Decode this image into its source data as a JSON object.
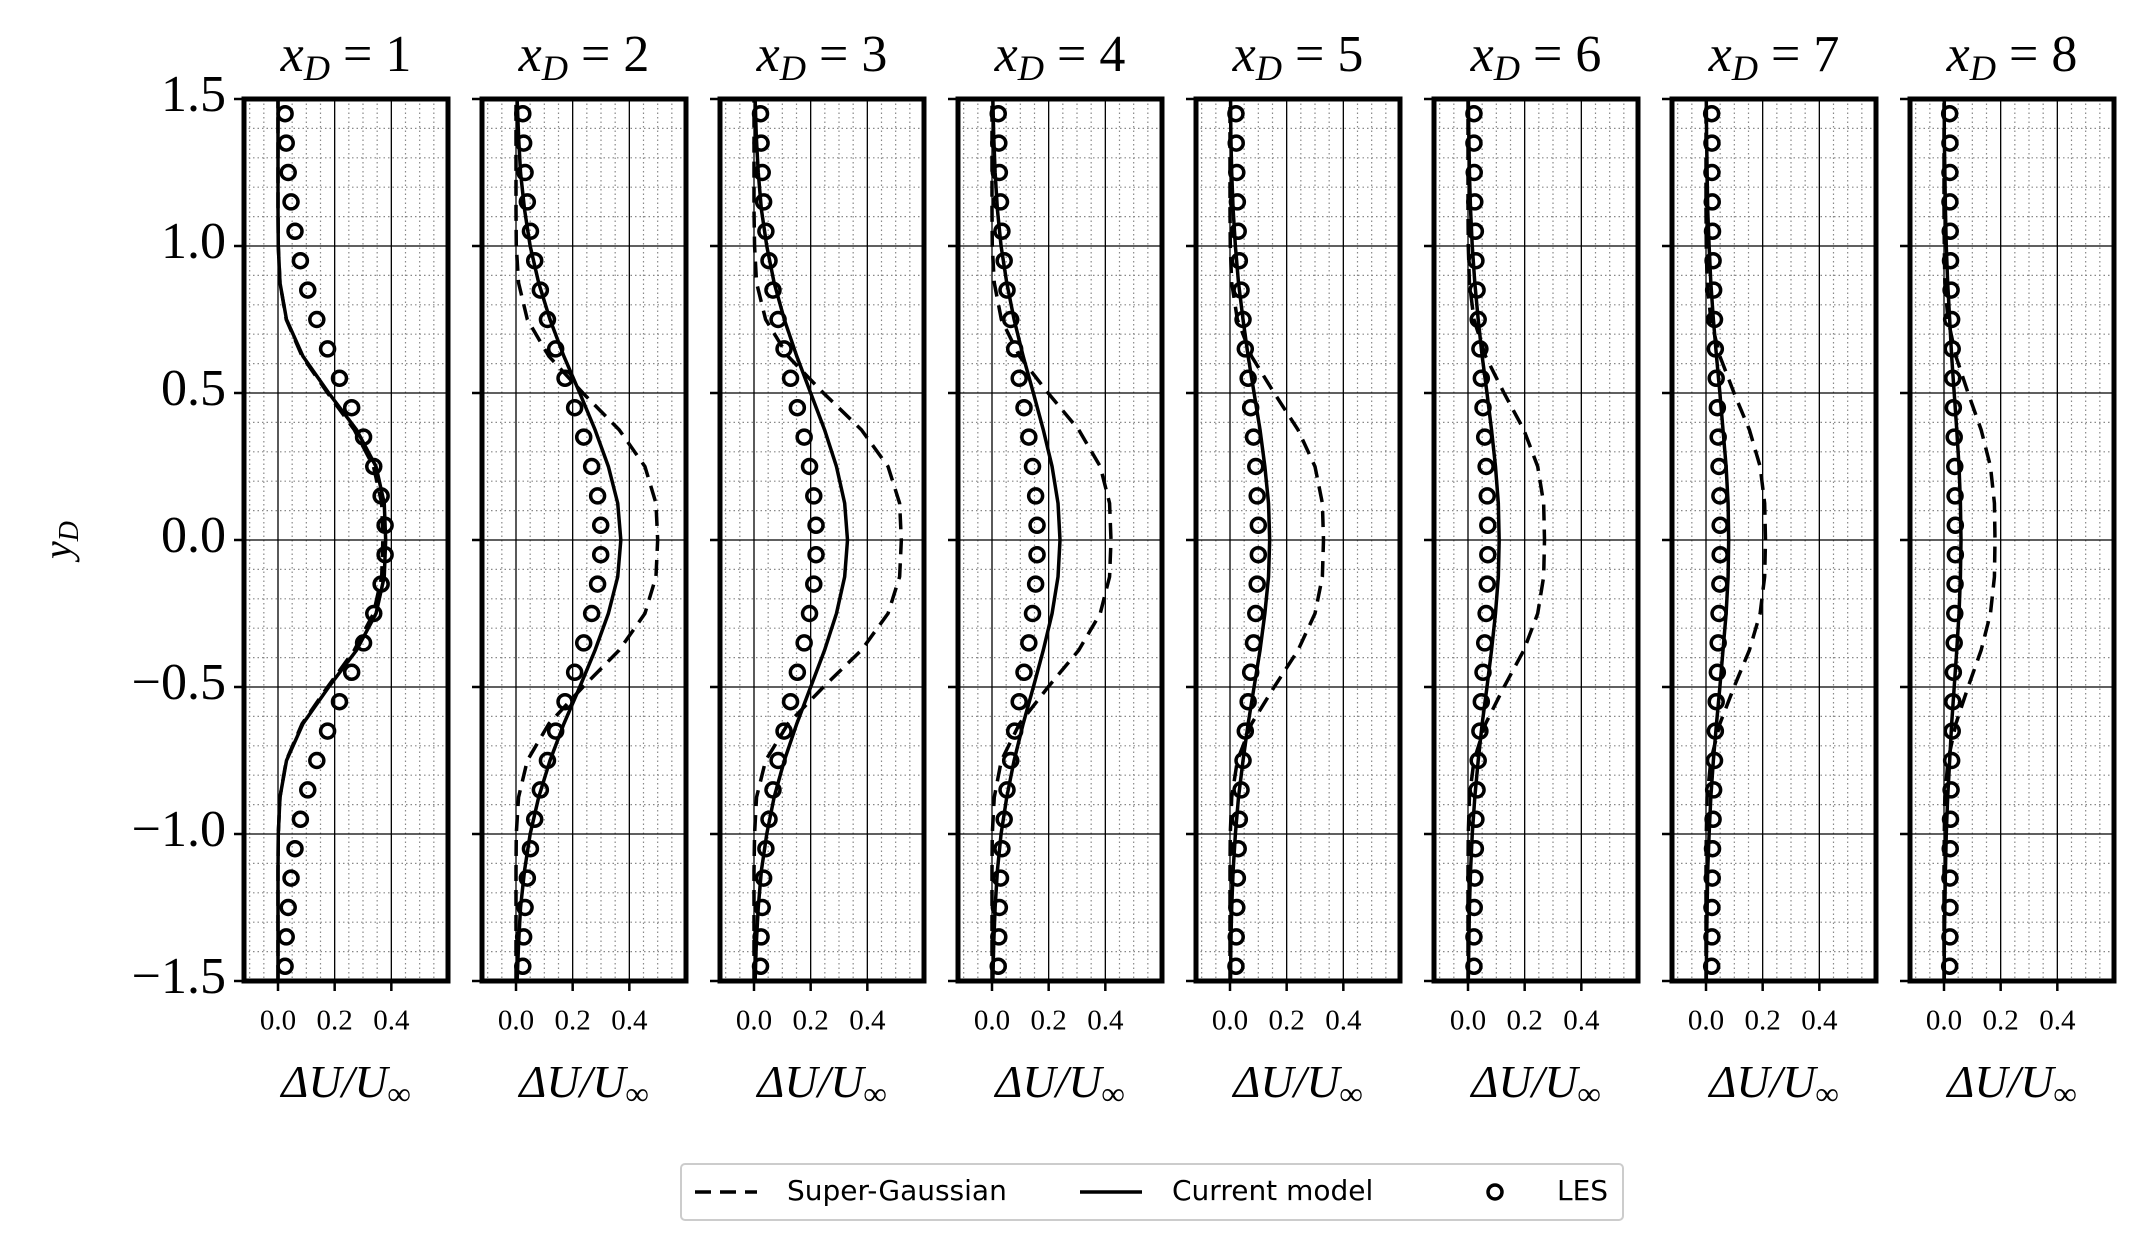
{
  "chart_data": {
    "type": "line",
    "xlabel": "ΔU/U∞",
    "ylabel": "yD",
    "xlim": [
      -0.12,
      0.6
    ],
    "ylim": [
      -1.5,
      1.5
    ],
    "xticks": [
      {
        "value": 0,
        "label": "0.0"
      },
      0.2,
      0.4
    ],
    "yticks": [
      {
        "value": -1.5,
        "label": "−1.5"
      },
      {
        "value": -1,
        "label": "−1.0"
      },
      {
        "value": -0.5,
        "label": "−0.5"
      },
      {
        "value": 0,
        "label": "0.0"
      },
      0.5,
      {
        "value": 1,
        "label": "1.0"
      },
      1.5
    ],
    "xminorticks": [
      -0.1,
      -0.05,
      0.05,
      0.1,
      0.15,
      0.25,
      0.3,
      0.35,
      0.45,
      0.5,
      0.55
    ],
    "yminorticks": [
      -1.4,
      -1.3,
      -1.2,
      -1.1,
      -0.9,
      -0.8,
      -0.7,
      -0.6,
      -0.4,
      -0.3,
      -0.2,
      -0.1,
      0.1,
      0.2,
      0.3,
      0.4,
      0.6,
      0.7,
      0.8,
      0.9,
      1.1,
      1.2,
      1.3,
      1.4
    ],
    "grid": true,
    "legend": "lower center",
    "series": [
      {
        "name": "Super-Gaussian",
        "color": "#000000",
        "style": "dashed",
        "y": [
          -1.5,
          -1.375,
          -1.25,
          -1.125,
          -1,
          -0.875,
          -0.75,
          -0.625,
          -0.5,
          -0.375,
          -0.25,
          -0.125,
          0,
          0.125,
          0.25,
          0.375,
          0.5,
          0.625,
          0.75,
          0.875,
          1,
          1.125,
          1.25,
          1.375,
          1.5
        ]
      },
      {
        "name": "Current model",
        "color": "#000000",
        "style": "solid",
        "y": [
          -1.5,
          -1.375,
          -1.25,
          -1.125,
          -1,
          -0.875,
          -0.75,
          -0.625,
          -0.5,
          -0.375,
          -0.25,
          -0.125,
          0,
          0.125,
          0.25,
          0.375,
          0.5,
          0.625,
          0.75,
          0.875,
          1,
          1.125,
          1.25,
          1.375,
          1.5
        ]
      },
      {
        "name": "LES",
        "color": "#000000",
        "style": "marker",
        "y": [
          -1.45,
          -1.35,
          -1.25,
          -1.15,
          -1.05,
          -0.95,
          -0.85,
          -0.75,
          -0.65,
          -0.55,
          -0.45,
          -0.35,
          -0.25,
          -0.15,
          -0.05,
          0.05,
          0.15,
          0.25,
          0.35,
          0.45,
          0.55,
          0.65,
          0.75,
          0.85,
          0.95,
          1.05,
          1.15,
          1.25,
          1.35,
          1.45
        ]
      }
    ],
    "panels": [
      {
        "title": "xD = 1",
        "values": [
          [
            0,
            0,
            0,
            0,
            0.001,
            0.007,
            0.029,
            0.085,
            0.175,
            0.269,
            0.337,
            0.366,
            0.37,
            0.366,
            0.337,
            0.269,
            0.175,
            0.085,
            0.029,
            0.007,
            0.001,
            0,
            0,
            0,
            0
          ],
          [
            0,
            0,
            0,
            0,
            0.001,
            0.007,
            0.03,
            0.088,
            0.179,
            0.277,
            0.346,
            0.375,
            0.38,
            0.375,
            0.346,
            0.277,
            0.179,
            0.088,
            0.03,
            0.007,
            0.001,
            0,
            0,
            0,
            0
          ],
          [
            0.025,
            0.029,
            0.036,
            0.046,
            0.06,
            0.079,
            0.105,
            0.137,
            0.175,
            0.217,
            0.26,
            0.302,
            0.338,
            0.364,
            0.378,
            0.378,
            0.364,
            0.338,
            0.302,
            0.26,
            0.217,
            0.175,
            0.137,
            0.105,
            0.079,
            0.06,
            0.046,
            0.036,
            0.029,
            0.025
          ]
        ]
      },
      {
        "title": "xD = 2",
        "values": [
          [
            0,
            0,
            0,
            0,
            0.001,
            0.009,
            0.04,
            0.116,
            0.236,
            0.364,
            0.455,
            0.494,
            0.5,
            0.494,
            0.455,
            0.364,
            0.236,
            0.116,
            0.04,
            0.009,
            0.001,
            0,
            0,
            0,
            0
          ],
          [
            0.004,
            0.009,
            0.016,
            0.03,
            0.05,
            0.08,
            0.12,
            0.169,
            0.225,
            0.279,
            0.326,
            0.359,
            0.37,
            0.359,
            0.326,
            0.279,
            0.225,
            0.169,
            0.12,
            0.08,
            0.05,
            0.03,
            0.016,
            0.009,
            0.004
          ],
          [
            0.024,
            0.027,
            0.032,
            0.04,
            0.051,
            0.066,
            0.086,
            0.111,
            0.14,
            0.173,
            0.207,
            0.239,
            0.267,
            0.288,
            0.299,
            0.299,
            0.288,
            0.267,
            0.239,
            0.207,
            0.173,
            0.14,
            0.111,
            0.086,
            0.066,
            0.051,
            0.04,
            0.032,
            0.027,
            0.024
          ]
        ]
      },
      {
        "title": "xD = 3",
        "values": [
          [
            0,
            0,
            0,
            0,
            0.002,
            0.009,
            0.041,
            0.12,
            0.245,
            0.379,
            0.473,
            0.514,
            0.52,
            0.514,
            0.473,
            0.379,
            0.245,
            0.12,
            0.041,
            0.009,
            0.002,
            0,
            0,
            0,
            0
          ],
          [
            0.004,
            0.008,
            0.015,
            0.026,
            0.045,
            0.071,
            0.107,
            0.151,
            0.2,
            0.249,
            0.291,
            0.32,
            0.33,
            0.32,
            0.291,
            0.249,
            0.2,
            0.151,
            0.107,
            0.071,
            0.045,
            0.026,
            0.015,
            0.008,
            0.004
          ],
          [
            0.023,
            0.025,
            0.029,
            0.034,
            0.042,
            0.053,
            0.067,
            0.085,
            0.106,
            0.129,
            0.153,
            0.177,
            0.196,
            0.211,
            0.219,
            0.219,
            0.211,
            0.196,
            0.177,
            0.153,
            0.129,
            0.106,
            0.085,
            0.067,
            0.053,
            0.042,
            0.034,
            0.029,
            0.025,
            0.023
          ]
        ]
      },
      {
        "title": "xD = 4",
        "values": [
          [
            0,
            0,
            0,
            0,
            0.001,
            0.008,
            0.033,
            0.097,
            0.198,
            0.306,
            0.382,
            0.415,
            0.42,
            0.415,
            0.382,
            0.306,
            0.198,
            0.097,
            0.033,
            0.008,
            0.001,
            0,
            0,
            0,
            0
          ],
          [
            0.003,
            0.006,
            0.011,
            0.019,
            0.032,
            0.052,
            0.078,
            0.11,
            0.146,
            0.181,
            0.212,
            0.233,
            0.24,
            0.233,
            0.212,
            0.181,
            0.146,
            0.11,
            0.078,
            0.052,
            0.032,
            0.019,
            0.011,
            0.006,
            0.003
          ],
          [
            0.022,
            0.024,
            0.026,
            0.03,
            0.035,
            0.043,
            0.053,
            0.066,
            0.08,
            0.096,
            0.113,
            0.13,
            0.143,
            0.154,
            0.159,
            0.159,
            0.154,
            0.143,
            0.13,
            0.113,
            0.096,
            0.08,
            0.066,
            0.053,
            0.043,
            0.035,
            0.03,
            0.026,
            0.024,
            0.022
          ]
        ]
      },
      {
        "title": "xD = 5",
        "values": [
          [
            0,
            0,
            0,
            0,
            0.001,
            0.006,
            0.026,
            0.076,
            0.156,
            0.24,
            0.3,
            0.326,
            0.33,
            0.326,
            0.3,
            0.24,
            0.156,
            0.076,
            0.026,
            0.006,
            0.001,
            0,
            0,
            0,
            0
          ],
          [
            0.002,
            0.003,
            0.006,
            0.011,
            0.019,
            0.03,
            0.046,
            0.064,
            0.085,
            0.106,
            0.123,
            0.136,
            0.14,
            0.136,
            0.123,
            0.106,
            0.085,
            0.064,
            0.046,
            0.03,
            0.019,
            0.011,
            0.006,
            0.003,
            0.002
          ],
          [
            0.021,
            0.022,
            0.024,
            0.026,
            0.029,
            0.033,
            0.039,
            0.046,
            0.054,
            0.064,
            0.073,
            0.083,
            0.091,
            0.096,
            0.1,
            0.1,
            0.096,
            0.091,
            0.083,
            0.073,
            0.064,
            0.054,
            0.046,
            0.039,
            0.033,
            0.029,
            0.026,
            0.024,
            0.022,
            0.021
          ]
        ]
      },
      {
        "title": "xD = 6",
        "values": [
          [
            0,
            0,
            0,
            0,
            0.001,
            0.005,
            0.021,
            0.062,
            0.127,
            0.197,
            0.246,
            0.267,
            0.27,
            0.267,
            0.246,
            0.197,
            0.127,
            0.062,
            0.021,
            0.005,
            0.001,
            0,
            0,
            0,
            0
          ],
          [
            0.001,
            0.003,
            0.005,
            0.009,
            0.015,
            0.024,
            0.036,
            0.05,
            0.067,
            0.083,
            0.097,
            0.107,
            0.11,
            0.107,
            0.097,
            0.083,
            0.067,
            0.05,
            0.036,
            0.024,
            0.015,
            0.009,
            0.005,
            0.003,
            0.001
          ],
          [
            0.021,
            0.021,
            0.022,
            0.024,
            0.026,
            0.028,
            0.032,
            0.036,
            0.042,
            0.047,
            0.053,
            0.059,
            0.064,
            0.068,
            0.07,
            0.07,
            0.068,
            0.064,
            0.059,
            0.053,
            0.047,
            0.042,
            0.036,
            0.032,
            0.028,
            0.026,
            0.024,
            0.022,
            0.021,
            0.021
          ]
        ]
      },
      {
        "title": "xD = 7",
        "values": [
          [
            0,
            0,
            0,
            0,
            0.001,
            0.004,
            0.017,
            0.049,
            0.099,
            0.153,
            0.191,
            0.207,
            0.21,
            0.207,
            0.191,
            0.153,
            0.099,
            0.049,
            0.017,
            0.004,
            0.001,
            0,
            0,
            0,
            0
          ],
          [
            0.001,
            0.002,
            0.004,
            0.006,
            0.011,
            0.017,
            0.026,
            0.037,
            0.049,
            0.06,
            0.071,
            0.078,
            0.08,
            0.078,
            0.071,
            0.06,
            0.049,
            0.037,
            0.026,
            0.017,
            0.011,
            0.006,
            0.004,
            0.002,
            0.001
          ],
          [
            0.02,
            0.021,
            0.021,
            0.022,
            0.023,
            0.025,
            0.027,
            0.03,
            0.033,
            0.036,
            0.04,
            0.043,
            0.046,
            0.049,
            0.05,
            0.05,
            0.049,
            0.046,
            0.043,
            0.04,
            0.036,
            0.033,
            0.03,
            0.027,
            0.025,
            0.023,
            0.022,
            0.021,
            0.021,
            0.02
          ]
        ]
      },
      {
        "title": "xD = 8",
        "values": [
          [
            0,
            0,
            0,
            0,
            0.001,
            0.003,
            0.014,
            0.042,
            0.085,
            0.131,
            0.164,
            0.178,
            0.18,
            0.178,
            0.164,
            0.131,
            0.085,
            0.042,
            0.014,
            0.003,
            0.001,
            0,
            0,
            0,
            0
          ],
          [
            0.001,
            0.001,
            0.003,
            0.005,
            0.008,
            0.013,
            0.02,
            0.027,
            0.036,
            0.045,
            0.053,
            0.058,
            0.06,
            0.058,
            0.053,
            0.045,
            0.036,
            0.027,
            0.02,
            0.013,
            0.008,
            0.005,
            0.003,
            0.001,
            0.001
          ],
          [
            0.02,
            0.021,
            0.021,
            0.021,
            0.022,
            0.023,
            0.025,
            0.027,
            0.029,
            0.031,
            0.033,
            0.036,
            0.038,
            0.039,
            0.04,
            0.04,
            0.039,
            0.038,
            0.036,
            0.033,
            0.031,
            0.029,
            0.027,
            0.025,
            0.023,
            0.022,
            0.021,
            0.021,
            0.021,
            0.02
          ]
        ]
      }
    ]
  }
}
